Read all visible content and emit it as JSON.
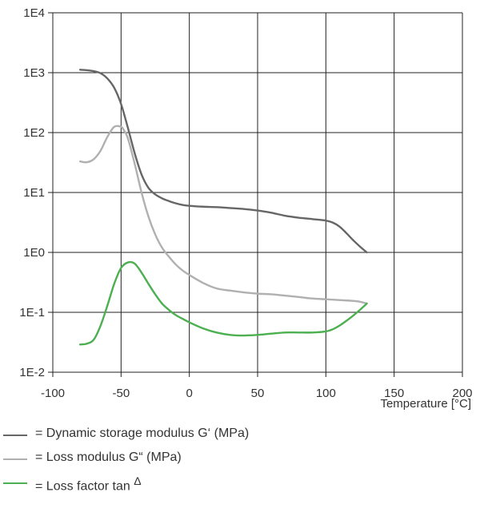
{
  "chart_data": {
    "type": "line",
    "xlabel": "Temperature [°C]",
    "ylabel": "",
    "xlim": [
      -100,
      200
    ],
    "x_ticks": [
      -100,
      -50,
      0,
      50,
      100,
      150,
      200
    ],
    "x_tick_labels": [
      "-100",
      "-50",
      "0",
      "50",
      "100",
      "150",
      "200"
    ],
    "y_scale": "log",
    "ylim": [
      0.01,
      10000
    ],
    "y_ticks": [
      0.01,
      0.1,
      1,
      10,
      100,
      1000,
      10000
    ],
    "y_tick_labels": [
      "1E-2",
      "1E-1",
      "1E0",
      "1E1",
      "1E2",
      "1E3",
      "1E4"
    ],
    "grid": true,
    "legend_position": "bottom",
    "series": [
      {
        "name": "= Dynamic storage modulus G‘ (MPa)",
        "color": "#666666",
        "x": [
          -80,
          -75,
          -70,
          -65,
          -60,
          -55,
          -50,
          -45,
          -40,
          -35,
          -30,
          -25,
          -20,
          -15,
          -10,
          -5,
          0,
          10,
          20,
          30,
          40,
          50,
          60,
          70,
          80,
          90,
          100,
          105,
          110,
          115,
          120,
          125,
          130
        ],
        "y": [
          1120,
          1100,
          1060,
          980,
          800,
          560,
          300,
          120,
          45,
          20,
          12,
          9.3,
          8,
          7.2,
          6.6,
          6.2,
          6,
          5.8,
          5.7,
          5.5,
          5.3,
          5,
          4.6,
          4.1,
          3.8,
          3.6,
          3.4,
          3.15,
          2.7,
          2.1,
          1.6,
          1.25,
          1
        ]
      },
      {
        "name": "= Loss modulus  G“ (MPa)",
        "color": "#b0b0b0",
        "x": [
          -80,
          -75,
          -70,
          -65,
          -60,
          -55,
          -50,
          -48,
          -45,
          -40,
          -35,
          -30,
          -25,
          -20,
          -15,
          -10,
          -5,
          0,
          10,
          20,
          30,
          40,
          50,
          60,
          70,
          80,
          90,
          100,
          110,
          120,
          125,
          130
        ],
        "y": [
          33,
          32,
          36,
          50,
          85,
          125,
          125,
          110,
          80,
          30,
          10,
          4,
          2,
          1.2,
          0.85,
          0.63,
          0.5,
          0.42,
          0.31,
          0.25,
          0.23,
          0.215,
          0.205,
          0.2,
          0.19,
          0.18,
          0.17,
          0.165,
          0.16,
          0.155,
          0.15,
          0.14
        ]
      },
      {
        "name": "= Loss factor tan",
        "color": "#4caf50",
        "x": [
          -80,
          -75,
          -70,
          -65,
          -60,
          -55,
          -50,
          -45,
          -40,
          -35,
          -30,
          -25,
          -20,
          -15,
          -10,
          -5,
          0,
          10,
          20,
          30,
          40,
          50,
          60,
          70,
          80,
          90,
          100,
          105,
          110,
          115,
          120,
          125,
          130
        ],
        "y": [
          0.029,
          0.03,
          0.035,
          0.06,
          0.13,
          0.3,
          0.55,
          0.68,
          0.65,
          0.46,
          0.3,
          0.2,
          0.14,
          0.11,
          0.09,
          0.078,
          0.068,
          0.054,
          0.046,
          0.042,
          0.041,
          0.042,
          0.044,
          0.046,
          0.046,
          0.046,
          0.048,
          0.052,
          0.06,
          0.072,
          0.088,
          0.11,
          0.14
        ]
      }
    ]
  },
  "legend": {
    "items": [
      {
        "label": "= Dynamic storage modulus G‘ (MPa)",
        "color": "#666666"
      },
      {
        "label": "= Loss modulus  G“ (MPa)",
        "color": "#b0b0b0"
      },
      {
        "label": "= Loss factor tan",
        "superscript": "Δ",
        "color": "#4caf50"
      }
    ]
  }
}
